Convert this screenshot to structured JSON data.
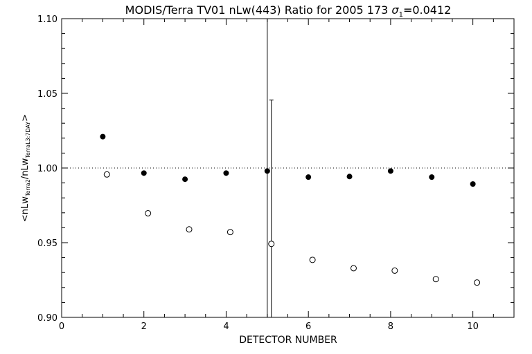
{
  "chart_data": {
    "type": "scatter",
    "title_prefix": "MODIS/Terra TV01 nLw(443) Ratio for 2005 173 ",
    "title_sigma": "σ",
    "title_sigma_sub": "1",
    "title_suffix": "=0.0412",
    "xlabel": "DETECTOR NUMBER",
    "ylabel": {
      "p1": "<nLw",
      "s1": "Terra2",
      "p2": "/nLw",
      "s2": "TerraL3:7DAY",
      "p3": ">"
    },
    "xlim": [
      0,
      11
    ],
    "ylim": [
      0.9,
      1.1
    ],
    "xticks": [
      0,
      2,
      4,
      6,
      8,
      10
    ],
    "yticks": [
      0.9,
      0.95,
      1.0,
      1.05,
      1.1
    ],
    "xtick_labels": [
      "0",
      "2",
      "4",
      "6",
      "8",
      "10"
    ],
    "ytick_labels": [
      "0.90",
      "0.95",
      "1.00",
      "1.05",
      "1.10"
    ],
    "reference_line": 1.0,
    "series": [
      {
        "marker": "filled-circle",
        "x": [
          1,
          2,
          3,
          4,
          5,
          6,
          7,
          8,
          9,
          10
        ],
        "y": [
          1.021,
          0.9966,
          0.9925,
          0.9966,
          0.998,
          0.9939,
          0.9943,
          0.998,
          0.9939,
          0.9893
        ]
      },
      {
        "marker": "open-circle",
        "x": [
          1.1,
          2.1,
          3.1,
          4.1,
          5.1,
          6.1,
          7.1,
          8.1,
          9.1,
          10.1
        ],
        "y": [
          0.9957,
          0.9697,
          0.9589,
          0.9571,
          0.9492,
          0.9385,
          0.9329,
          0.9313,
          0.9256,
          0.9233
        ]
      }
    ],
    "error_bars": [
      {
        "x": 5.0,
        "low": 0.9,
        "high": 1.1
      },
      {
        "x": 5.1,
        "low": 0.9,
        "high": 1.0455
      }
    ]
  }
}
